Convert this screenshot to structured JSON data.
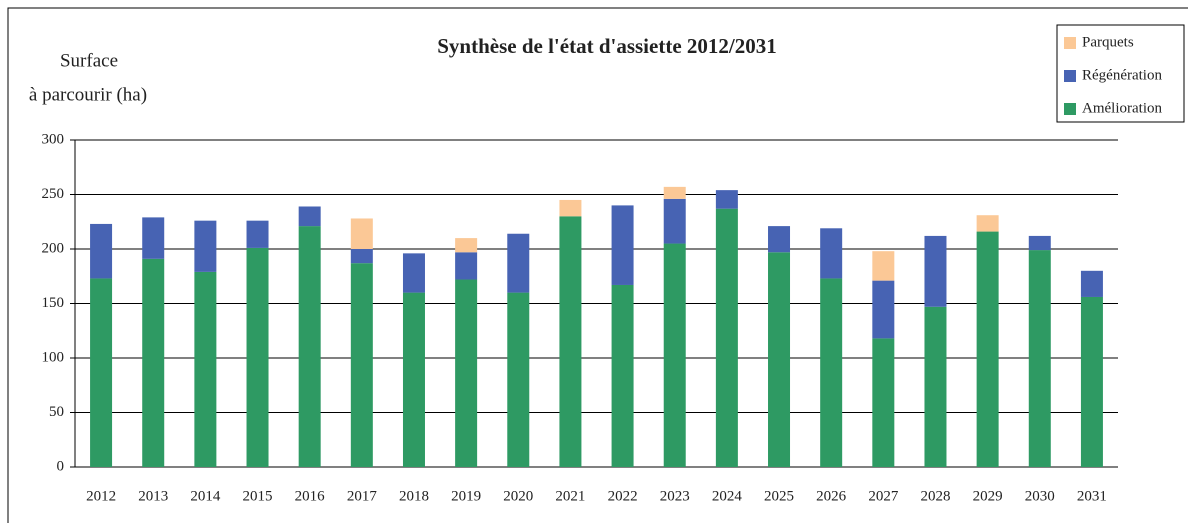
{
  "chart_data": {
    "type": "bar",
    "stacked": true,
    "title": "Synthèse de l'état d'assiette 2012/2031",
    "y_label": [
      "Surface",
      "à parcourir (ha)"
    ],
    "categories": [
      "2012",
      "2013",
      "2014",
      "2015",
      "2016",
      "2017",
      "2018",
      "2019",
      "2020",
      "2021",
      "2022",
      "2023",
      "2024",
      "2025",
      "2026",
      "2027",
      "2028",
      "2029",
      "2030",
      "2031"
    ],
    "series": [
      {
        "name": "Amélioration",
        "color": "#2e9a63",
        "values": [
          173,
          191,
          179,
          201,
          221,
          187,
          160,
          172,
          160,
          230,
          167,
          205,
          237,
          197,
          173,
          118,
          147,
          216,
          199,
          156
        ]
      },
      {
        "name": "Régénération",
        "color": "#4763b3",
        "values": [
          50,
          38,
          47,
          25,
          18,
          13,
          36,
          25,
          54,
          0,
          73,
          41,
          17,
          24,
          46,
          53,
          65,
          0,
          13,
          24
        ]
      },
      {
        "name": "Parquets",
        "color": "#fbc896",
        "values": [
          0,
          0,
          0,
          0,
          0,
          28,
          0,
          13,
          0,
          15,
          0,
          11,
          0,
          0,
          0,
          27,
          0,
          15,
          0,
          0
        ]
      }
    ],
    "ylim": [
      0,
      300
    ],
    "yticks": [
      0,
      50,
      100,
      150,
      200,
      250,
      300
    ],
    "grid": true,
    "legend": "top-right"
  }
}
